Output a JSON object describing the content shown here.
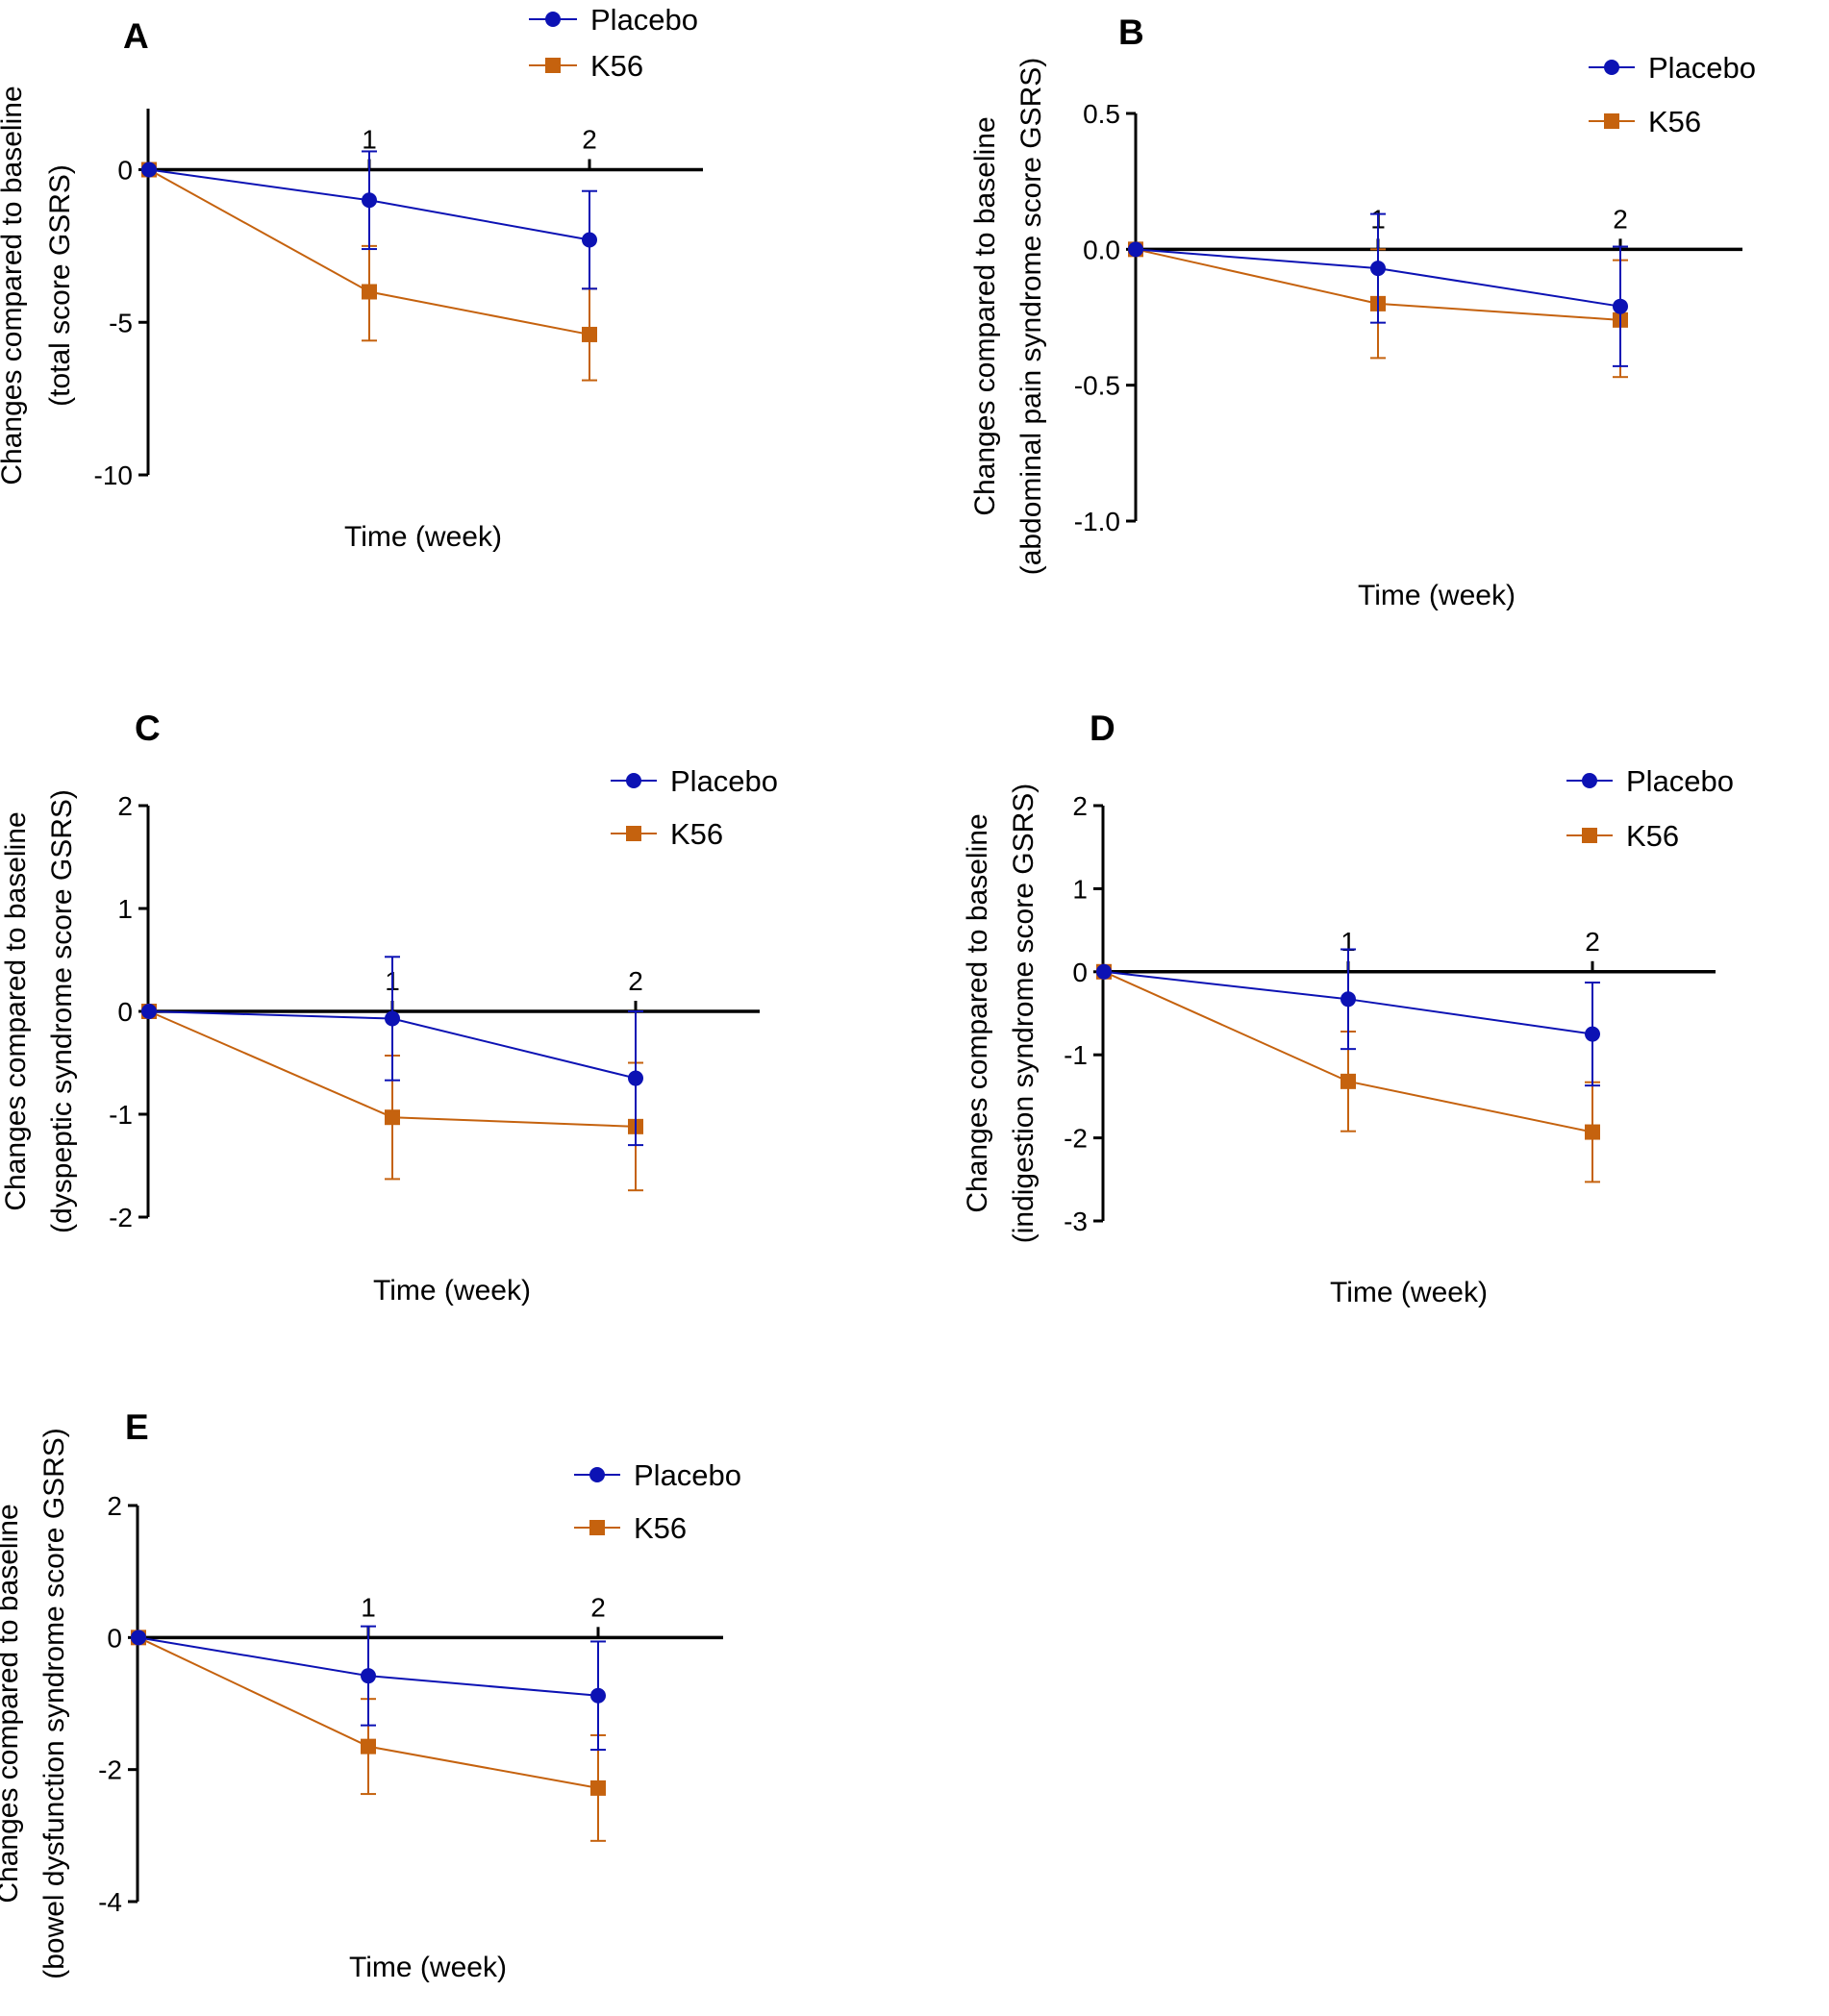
{
  "chart_data": [
    {
      "panel": "A",
      "type": "line",
      "xlabel": "Time (week)",
      "ylabel_lines": [
        "Changes compared to baseline",
        "(total score GSRS)"
      ],
      "ylim": [
        -10,
        2
      ],
      "yticks": [
        0,
        -5,
        -10
      ],
      "ytick_labels": [
        "0",
        "-5",
        "-10"
      ],
      "xticks": [
        1,
        2
      ],
      "xtick_labels": [
        "1",
        "2"
      ],
      "x": [
        0,
        1,
        2
      ],
      "legend_position": "top-center",
      "series": [
        {
          "name": "Placebo",
          "marker": "circle",
          "color": "#0c12b4",
          "values": [
            0,
            -1.0,
            -2.3
          ],
          "err_low": [
            0,
            1.6,
            1.6
          ],
          "err_high": [
            0,
            1.6,
            1.6
          ]
        },
        {
          "name": "K56",
          "marker": "square",
          "color": "#c5620e",
          "values": [
            0,
            -4.0,
            -5.4
          ],
          "err_low": [
            0,
            1.6,
            1.5
          ],
          "err_high": [
            0,
            1.5,
            1.5
          ]
        }
      ]
    },
    {
      "panel": "B",
      "type": "line",
      "xlabel": "Time (week)",
      "ylabel_lines": [
        "Changes compared to baseline",
        "(abdominal pain syndrome score GSRS)"
      ],
      "ylim": [
        -1.0,
        0.5
      ],
      "yticks": [
        0.5,
        0.0,
        -0.5,
        -1.0
      ],
      "ytick_labels": [
        "0.5",
        "0.0",
        "-0.5",
        "-1.0"
      ],
      "xticks": [
        1,
        2
      ],
      "xtick_labels": [
        "1",
        "2"
      ],
      "x": [
        0,
        1,
        2
      ],
      "legend_position": "top-right",
      "series": [
        {
          "name": "Placebo",
          "marker": "circle",
          "color": "#0c12b4",
          "values": [
            0,
            -0.07,
            -0.21
          ],
          "err_low": [
            0,
            0.2,
            0.22
          ],
          "err_high": [
            0,
            0.2,
            0.22
          ]
        },
        {
          "name": "K56",
          "marker": "square",
          "color": "#c5620e",
          "values": [
            0,
            -0.2,
            -0.26
          ],
          "err_low": [
            0,
            0.2,
            0.21
          ],
          "err_high": [
            0,
            0.2,
            0.22
          ]
        }
      ]
    },
    {
      "panel": "C",
      "type": "line",
      "xlabel": "Time (week)",
      "ylabel_lines": [
        "Changes compared to baseline",
        "(dyspeptic syndrome score GSRS)"
      ],
      "ylim": [
        -2,
        2
      ],
      "yticks": [
        2,
        1,
        0,
        -1,
        -2
      ],
      "ytick_labels": [
        "2",
        "1",
        "0",
        "-1",
        "-2"
      ],
      "xticks": [
        1,
        2
      ],
      "xtick_labels": [
        "1",
        "2"
      ],
      "x": [
        0,
        1,
        2
      ],
      "legend_position": "top-right",
      "series": [
        {
          "name": "Placebo",
          "marker": "circle",
          "color": "#0c12b4",
          "values": [
            0,
            -0.07,
            -0.65
          ],
          "err_low": [
            0,
            0.6,
            0.65
          ],
          "err_high": [
            0,
            0.6,
            0.65
          ]
        },
        {
          "name": "K56",
          "marker": "square",
          "color": "#c5620e",
          "values": [
            0,
            -1.03,
            -1.12
          ],
          "err_low": [
            0,
            0.6,
            0.62
          ],
          "err_high": [
            0,
            0.6,
            0.62
          ]
        }
      ]
    },
    {
      "panel": "D",
      "type": "line",
      "xlabel": "Time (week)",
      "ylabel_lines": [
        "Changes compared to baseline",
        "(indigestion syndrome score GSRS)"
      ],
      "ylim": [
        -3,
        2
      ],
      "yticks": [
        2,
        1,
        0,
        -1,
        -2,
        -3
      ],
      "ytick_labels": [
        "2",
        "1",
        "0",
        "-1",
        "-2",
        "-3"
      ],
      "xticks": [
        1,
        2
      ],
      "xtick_labels": [
        "1",
        "2"
      ],
      "x": [
        0,
        1,
        2
      ],
      "legend_position": "top-right",
      "series": [
        {
          "name": "Placebo",
          "marker": "circle",
          "color": "#0c12b4",
          "values": [
            0,
            -0.33,
            -0.75
          ],
          "err_low": [
            0,
            0.6,
            0.62
          ],
          "err_high": [
            0,
            0.6,
            0.62
          ]
        },
        {
          "name": "K56",
          "marker": "square",
          "color": "#c5620e",
          "values": [
            0,
            -1.32,
            -1.93
          ],
          "err_low": [
            0,
            0.6,
            0.6
          ],
          "err_high": [
            0,
            0.6,
            0.6
          ]
        }
      ]
    },
    {
      "panel": "E",
      "type": "line",
      "xlabel": "Time (week)",
      "ylabel_lines": [
        "Changes compared to baseline",
        "(bowel dysfunction syndrome score GSRS)"
      ],
      "ylim": [
        -4,
        2
      ],
      "yticks": [
        2,
        0,
        -2,
        -4
      ],
      "ytick_labels": [
        "2",
        "0",
        "-2",
        "-4"
      ],
      "xticks": [
        1,
        2
      ],
      "xtick_labels": [
        "1",
        "2"
      ],
      "x": [
        0,
        1,
        2
      ],
      "legend_position": "top-right",
      "series": [
        {
          "name": "Placebo",
          "marker": "circle",
          "color": "#0c12b4",
          "values": [
            0,
            -0.58,
            -0.88
          ],
          "err_low": [
            0,
            0.75,
            0.82
          ],
          "err_high": [
            0,
            0.75,
            0.82
          ]
        },
        {
          "name": "K56",
          "marker": "square",
          "color": "#c5620e",
          "values": [
            0,
            -1.65,
            -2.28
          ],
          "err_low": [
            0,
            0.72,
            0.8
          ],
          "err_high": [
            0,
            0.72,
            0.8
          ]
        }
      ]
    }
  ]
}
